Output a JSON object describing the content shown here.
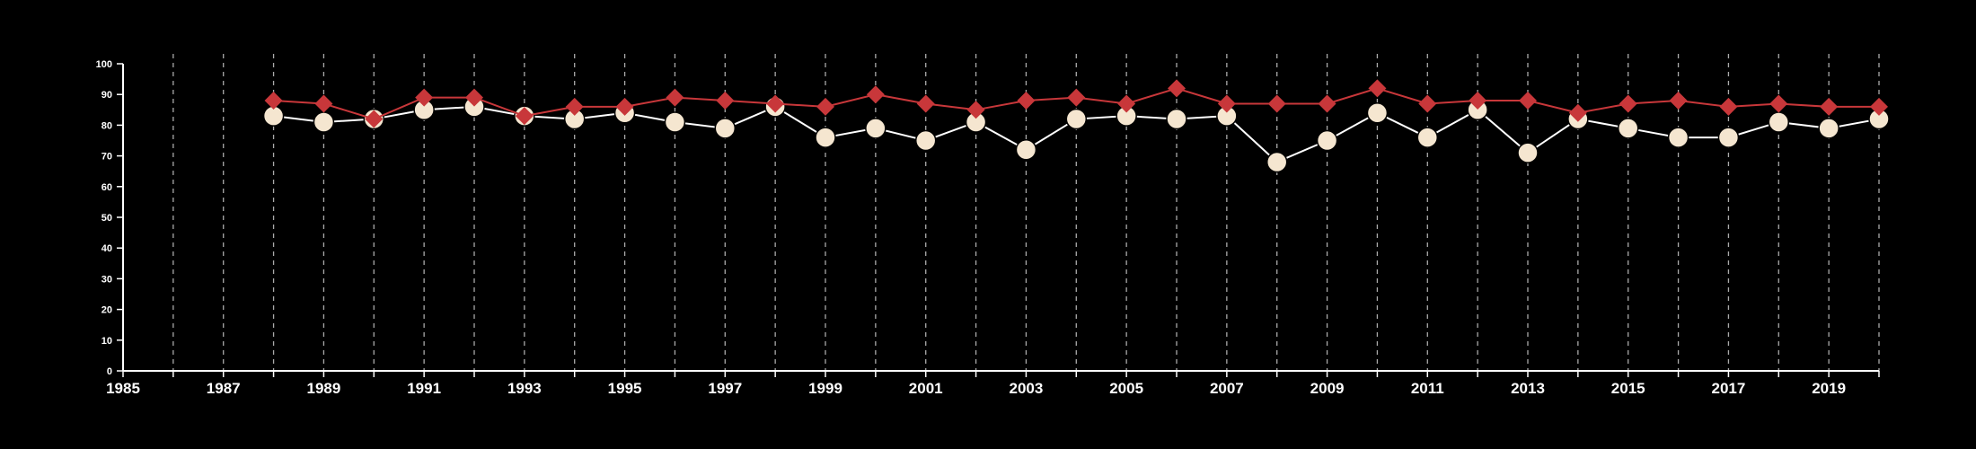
{
  "chart_data": {
    "type": "line",
    "title": "",
    "xlabel": "",
    "ylabel": "",
    "xlim": [
      1985,
      2020
    ],
    "ylim": [
      0,
      100
    ],
    "x_ticks": [
      1985,
      1987,
      1989,
      1991,
      1993,
      1995,
      1997,
      1999,
      2001,
      2003,
      2005,
      2007,
      2009,
      2011,
      2013,
      2015,
      2017,
      2019
    ],
    "y_ticks": [
      0,
      10,
      20,
      30,
      40,
      50,
      60,
      70,
      80,
      90,
      100
    ],
    "grid": "vertical dashed lines at every year",
    "legend": "none",
    "x": [
      1988,
      1989,
      1990,
      1991,
      1992,
      1993,
      1994,
      1995,
      1996,
      1997,
      1998,
      1999,
      2000,
      2001,
      2002,
      2003,
      2004,
      2005,
      2006,
      2007,
      2008,
      2009,
      2010,
      2011,
      2012,
      2013,
      2014,
      2015,
      2016,
      2017,
      2018,
      2019,
      2020
    ],
    "series": [
      {
        "marker": "diamond",
        "color": "#c8373a",
        "values": [
          88,
          87,
          82,
          89,
          89,
          83,
          86,
          86,
          89,
          88,
          87,
          86,
          90,
          87,
          85,
          88,
          89,
          87,
          92,
          87,
          87,
          87,
          92,
          87,
          88,
          88,
          84,
          87,
          88,
          86,
          87,
          86,
          86
        ]
      },
      {
        "marker": "circle",
        "color": "#f5e6d0",
        "values": [
          83,
          81,
          82,
          85,
          86,
          83,
          82,
          84,
          81,
          79,
          86,
          76,
          79,
          75,
          81,
          72,
          82,
          83,
          82,
          83,
          68,
          75,
          84,
          76,
          85,
          71,
          82,
          79,
          76,
          76,
          81,
          79,
          82
        ]
      }
    ]
  },
  "colors": {
    "background": "#000000",
    "axis": "#ffffff",
    "grid": "#aaaaaa",
    "circle_outline": "#000000",
    "line_light": "#ffffff"
  }
}
